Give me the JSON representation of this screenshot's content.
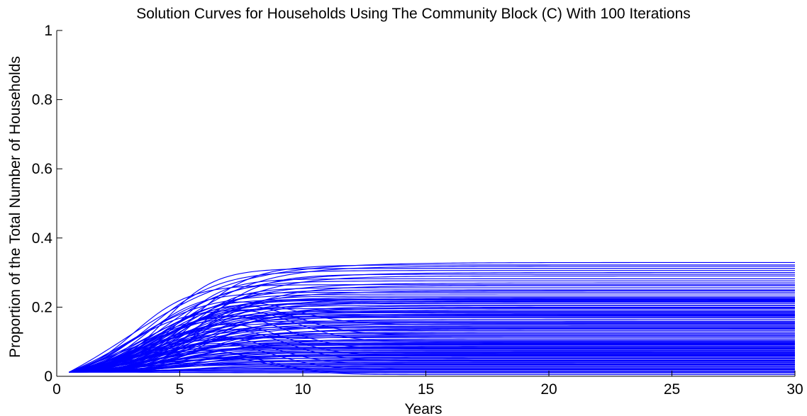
{
  "chart_data": {
    "type": "line",
    "title": "Solution Curves for Households Using The Community Block (C) With 100 Iterations",
    "xlabel": "Years",
    "ylabel": "Proportion of the Total Number of Households",
    "xlim": [
      0,
      30
    ],
    "ylim": [
      0,
      1
    ],
    "x_ticks": [
      0,
      5,
      10,
      15,
      20,
      25,
      30
    ],
    "y_ticks": [
      0,
      0.2,
      0.4,
      0.6,
      0.8,
      1
    ],
    "x_tick_labels": [
      "0",
      "5",
      "10",
      "15",
      "20",
      "25",
      "30"
    ],
    "y_tick_labels": [
      "0",
      "0.2",
      "0.4",
      "0.6",
      "0.8",
      "1"
    ],
    "x_start": 0.5,
    "x_end": 30,
    "initial_value": 0.012,
    "series_count": 100,
    "line_color": "#0000ff",
    "grid": false,
    "legend": "none",
    "final_values": [
      0.329,
      0.322,
      0.318,
      0.312,
      0.306,
      0.3,
      0.295,
      0.29,
      0.282,
      0.276,
      0.27,
      0.265,
      0.262,
      0.256,
      0.25,
      0.247,
      0.243,
      0.238,
      0.232,
      0.228,
      0.225,
      0.223,
      0.221,
      0.219,
      0.217,
      0.214,
      0.21,
      0.205,
      0.2,
      0.196,
      0.192,
      0.188,
      0.184,
      0.181,
      0.179,
      0.177,
      0.175,
      0.17,
      0.165,
      0.16,
      0.157,
      0.154,
      0.15,
      0.146,
      0.143,
      0.14,
      0.136,
      0.132,
      0.128,
      0.124,
      0.12,
      0.116,
      0.112,
      0.108,
      0.104,
      0.101,
      0.098,
      0.096,
      0.094,
      0.092,
      0.09,
      0.087,
      0.084,
      0.081,
      0.078,
      0.075,
      0.072,
      0.07,
      0.068,
      0.066,
      0.064,
      0.062,
      0.06,
      0.058,
      0.055,
      0.052,
      0.049,
      0.046,
      0.043,
      0.04,
      0.037,
      0.034,
      0.031,
      0.028,
      0.025,
      0.022,
      0.019,
      0.016,
      0.013,
      0.01,
      0.083,
      0.117,
      0.152,
      0.186,
      0.204,
      0.222,
      0.216,
      0.198,
      0.172,
      0.138
    ],
    "transient_series": [
      {
        "final": 0.005,
        "peak": 0.055,
        "peak_x": 6.5
      },
      {
        "final": 0.01,
        "peak": 0.075,
        "peak_x": 6.0
      },
      {
        "final": 0.02,
        "peak": 0.095,
        "peak_x": 6.5
      },
      {
        "final": 0.035,
        "peak": 0.115,
        "peak_x": 6.5
      },
      {
        "final": 0.045,
        "peak": 0.135,
        "peak_x": 7.0
      },
      {
        "final": 0.06,
        "peak": 0.15,
        "peak_x": 7.0
      },
      {
        "final": 0.08,
        "peak": 0.175,
        "peak_x": 7.0
      },
      {
        "final": 0.1,
        "peak": 0.19,
        "peak_x": 7.5
      },
      {
        "final": 0.12,
        "peak": 0.205,
        "peak_x": 7.5
      },
      {
        "final": 0.15,
        "peak": 0.215,
        "peak_x": 7.5
      }
    ]
  }
}
